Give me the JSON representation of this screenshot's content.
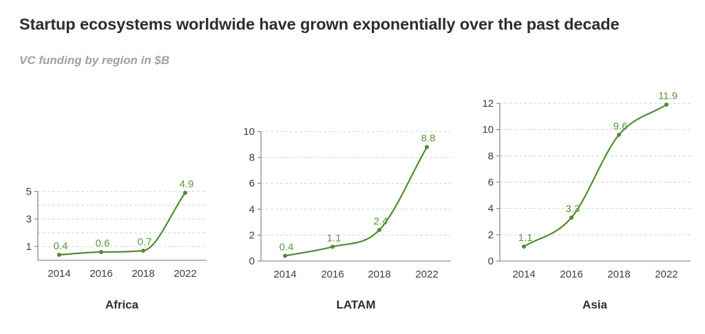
{
  "header": {
    "title": "Startup ecosystems worldwide have grown exponentially over the past decade",
    "subtitle": "VC funding by region in $B"
  },
  "colors": {
    "line": "#4f8c2f",
    "label": "#5a9a3b",
    "grid": "#cfd3d6",
    "axis": "#8a8e92"
  },
  "chart_data": [
    {
      "type": "line",
      "title": "Africa",
      "categories": [
        "2014",
        "2016",
        "2018",
        "2022"
      ],
      "values": [
        0.4,
        0.6,
        0.7,
        4.9
      ],
      "data_labels": [
        "0.4",
        "0.6",
        "0.7",
        "4.9"
      ],
      "ylim": [
        0,
        5
      ],
      "yticks": [
        1,
        3,
        5
      ],
      "gridlines": [
        1,
        2,
        3,
        4,
        5
      ],
      "xlabel": "",
      "ylabel": "",
      "grid": true,
      "legend": "none"
    },
    {
      "type": "line",
      "title": "LATAM",
      "categories": [
        "2014",
        "2016",
        "2018",
        "2022"
      ],
      "values": [
        0.4,
        1.1,
        2.4,
        8.8
      ],
      "data_labels": [
        "0.4",
        "1.1",
        "2.4",
        "8.8"
      ],
      "ylim": [
        0,
        10
      ],
      "yticks": [
        0,
        2,
        4,
        6,
        8,
        10
      ],
      "gridlines": [
        2,
        4,
        6,
        8,
        10
      ],
      "xlabel": "",
      "ylabel": "",
      "grid": true,
      "legend": "none"
    },
    {
      "type": "line",
      "title": "Asia",
      "categories": [
        "2014",
        "2016",
        "2018",
        "2022"
      ],
      "values": [
        1.1,
        3.3,
        9.6,
        11.9
      ],
      "data_labels": [
        "1.1",
        "3.3",
        "9.6",
        "11.9"
      ],
      "ylim": [
        0,
        12
      ],
      "yticks": [
        0,
        2,
        4,
        6,
        8,
        10,
        12
      ],
      "gridlines": [
        2,
        4,
        6,
        8,
        10,
        12
      ],
      "xlabel": "",
      "ylabel": "",
      "grid": true,
      "legend": "none"
    }
  ]
}
